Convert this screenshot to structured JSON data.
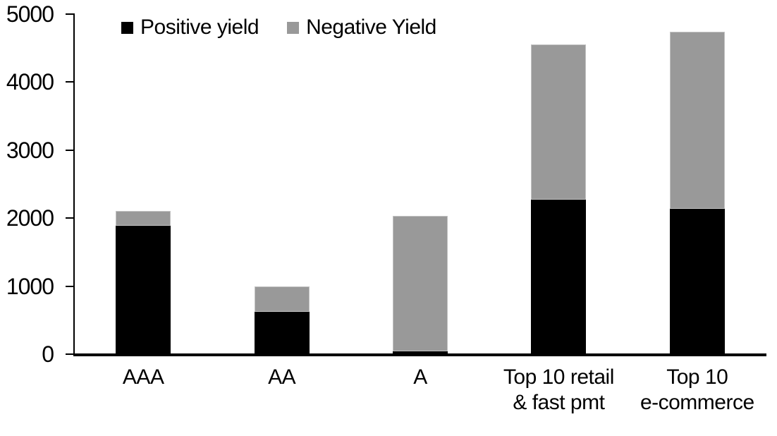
{
  "chart_data": {
    "type": "bar",
    "stacked": true,
    "title": "",
    "xlabel": "",
    "ylabel": "",
    "categories": [
      "AAA",
      "AA",
      "A",
      "Top 10 retail\n& fast pmt",
      "Top 10\ne-commerce"
    ],
    "series": [
      {
        "name": "Positive yield",
        "color": "#000000",
        "values": [
          1890,
          620,
          40,
          2270,
          2140
        ]
      },
      {
        "name": "Negative Yield",
        "color": "#999999",
        "values": [
          220,
          380,
          1990,
          2280,
          2600
        ]
      }
    ],
    "totals": [
      2110,
      1000,
      2030,
      4550,
      4740
    ],
    "ylim": [
      0,
      5000
    ],
    "yticks": [
      0,
      1000,
      2000,
      3000,
      4000,
      5000
    ],
    "grid": false,
    "legend_position": "top-left-inside"
  },
  "legend": {
    "items": [
      {
        "label": "Positive yield",
        "color": "#000000"
      },
      {
        "label": "Negative Yield",
        "color": "#999999"
      }
    ]
  },
  "colors": {
    "axis": "#000000",
    "background": "#ffffff",
    "positive_series": "#000000",
    "negative_series": "#999999"
  }
}
